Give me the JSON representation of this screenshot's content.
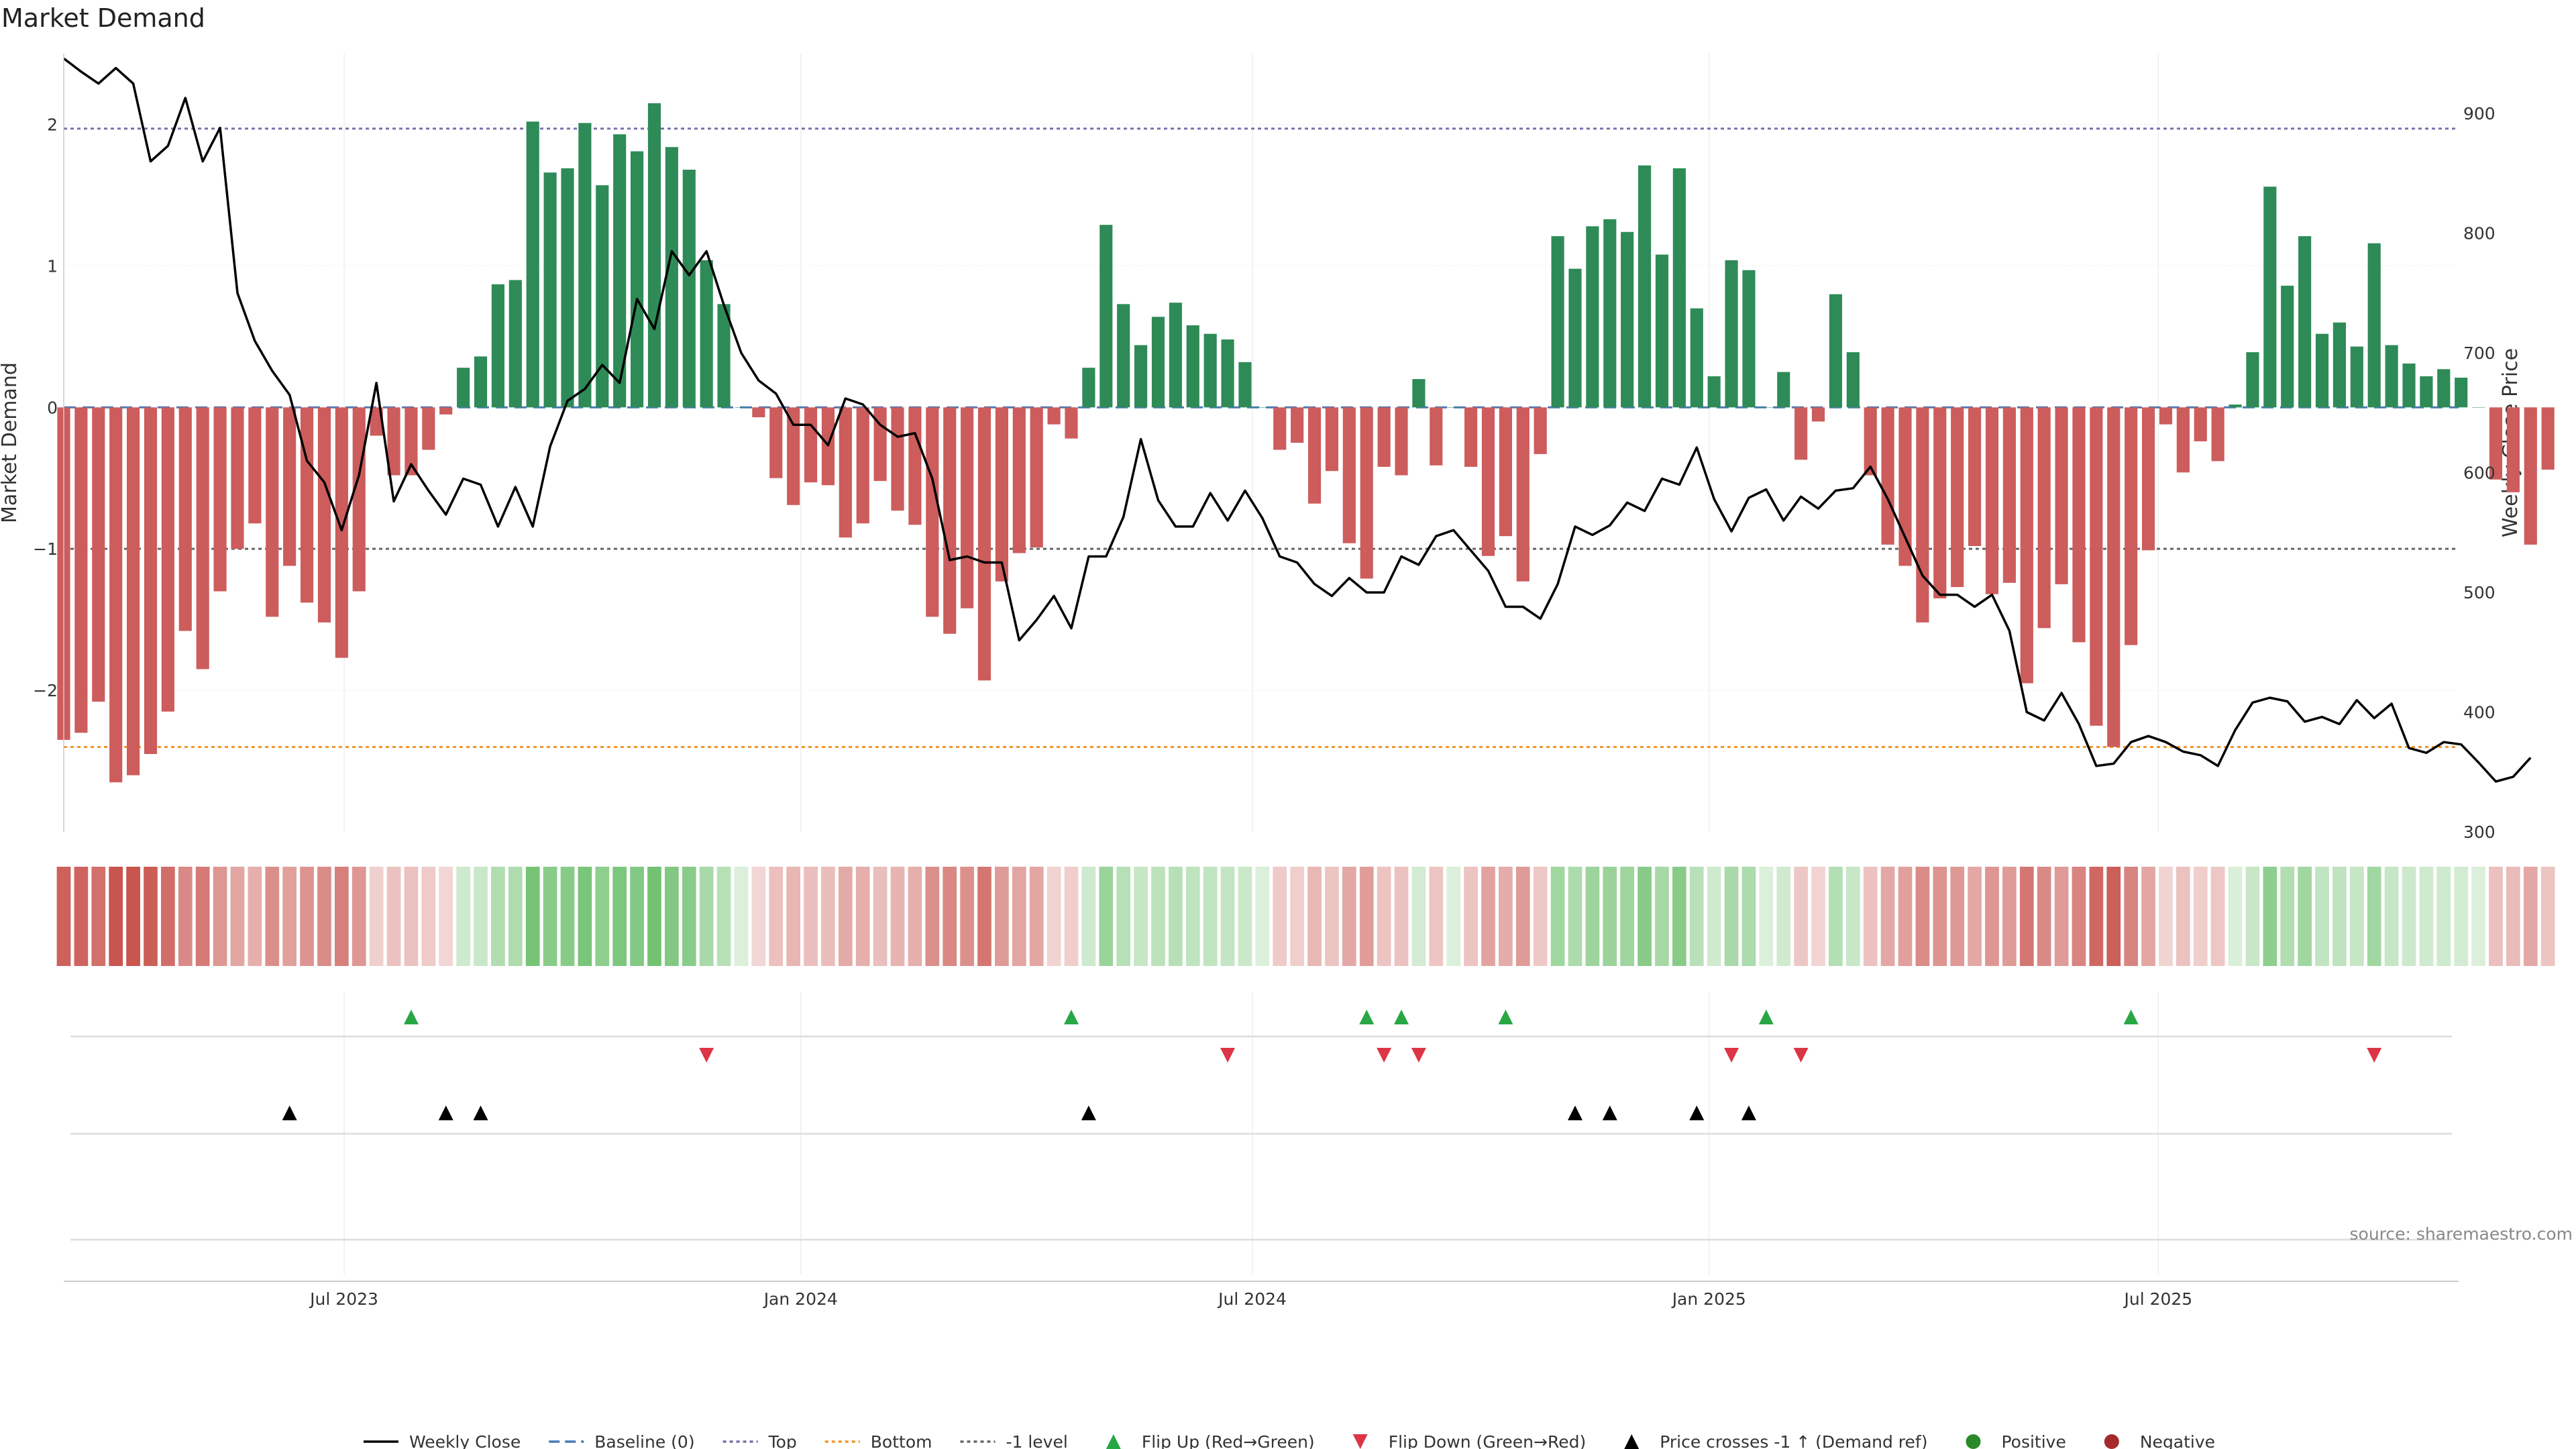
{
  "chart_data": {
    "type": "bar",
    "title": "Market Demand",
    "ylabel_left": "Market Demand",
    "ylabel_right": "Weekly Close Price",
    "ylim_left": [
      -3.0,
      2.5
    ],
    "ylim_right": [
      300,
      950
    ],
    "yticks_left": [
      -2,
      -1,
      0,
      1,
      2
    ],
    "yticks_left_labels": [
      "−2",
      "−1",
      "0",
      "1",
      "2"
    ],
    "yticks_right": [
      300,
      400,
      500,
      600,
      700,
      800,
      900
    ],
    "yticks_right_labels": [
      "300",
      "400",
      "500",
      "600",
      "700",
      "800",
      "900"
    ],
    "x_start": "2023-03-10",
    "x_end": "2025-10-30",
    "xticks": [
      {
        "date": "2023-07-01",
        "label": "Jul 2023"
      },
      {
        "date": "2024-01-01",
        "label": "Jan 2024"
      },
      {
        "date": "2024-07-01",
        "label": "Jul 2024"
      },
      {
        "date": "2025-01-01",
        "label": "Jan 2025"
      },
      {
        "date": "2025-07-01",
        "label": "Jul 2025"
      }
    ],
    "levels": {
      "top": 1.97,
      "bottom": -2.4,
      "minus_one": -1.0,
      "baseline": 0
    },
    "first_week": "2023-03-10",
    "demand": [
      -2.35,
      -2.3,
      -2.08,
      -2.65,
      -2.6,
      -2.45,
      -2.15,
      -1.58,
      -1.85,
      -1.3,
      -1.0,
      -0.82,
      -1.48,
      -1.12,
      -1.38,
      -1.52,
      -1.77,
      -1.3,
      -0.2,
      -0.48,
      -0.48,
      -0.3,
      -0.05,
      0.28,
      0.36,
      0.87,
      0.9,
      2.02,
      1.66,
      1.69,
      2.01,
      1.57,
      1.93,
      1.81,
      2.15,
      1.84,
      1.68,
      1.04,
      0.73,
      0.0,
      -0.07,
      -0.5,
      -0.69,
      -0.53,
      -0.55,
      -0.92,
      -0.82,
      -0.52,
      -0.73,
      -0.83,
      -1.48,
      -1.6,
      -1.42,
      -1.93,
      -1.23,
      -1.03,
      -0.99,
      -0.12,
      -0.22,
      0.28,
      1.29,
      0.73,
      0.44,
      0.64,
      0.74,
      0.58,
      0.52,
      0.48,
      0.32,
      0.0,
      -0.3,
      -0.25,
      -0.68,
      -0.45,
      -0.96,
      -1.21,
      -0.42,
      -0.48,
      0.2,
      -0.41,
      0.0,
      -0.42,
      -1.05,
      -0.91,
      -1.23,
      -0.33,
      1.21,
      0.98,
      1.28,
      1.33,
      1.24,
      1.71,
      1.08,
      1.69,
      0.7,
      0.22,
      1.04,
      0.97,
      0.0,
      0.25,
      -0.37,
      -0.1,
      0.8,
      0.39,
      -0.48,
      -0.97,
      -1.12,
      -1.52,
      -1.35,
      -1.27,
      -0.98,
      -1.32,
      -1.24,
      -1.95,
      -1.56,
      -1.25,
      -1.66,
      -2.25,
      -2.4,
      -1.68,
      -1.01,
      -0.12,
      -0.46,
      -0.24,
      -0.38,
      0.02,
      0.39,
      1.56,
      0.86,
      1.21,
      0.52,
      0.6,
      0.43,
      1.16,
      0.44,
      0.31,
      0.22,
      0.27,
      0.21,
      0.0,
      -0.51,
      -0.6,
      -0.97,
      -0.44
    ],
    "close": [
      946,
      935,
      925,
      938,
      925,
      860,
      873,
      913,
      860,
      888,
      750,
      710,
      685,
      665,
      610,
      592,
      552,
      598,
      675,
      576,
      607,
      585,
      565,
      595,
      590,
      555,
      588,
      555,
      622,
      660,
      670,
      690,
      675,
      745,
      720,
      785,
      765,
      785,
      740,
      700,
      677,
      666,
      640,
      640,
      623,
      662,
      657,
      640,
      630,
      633,
      595,
      527,
      530,
      525,
      525,
      460,
      477,
      497,
      470,
      530,
      530,
      563,
      628,
      577,
      555,
      555,
      583,
      560,
      585,
      562,
      530,
      525,
      507,
      497,
      512,
      500,
      500,
      530,
      523,
      547,
      552,
      535,
      518,
      488,
      488,
      478,
      507,
      555,
      548,
      556,
      575,
      568,
      595,
      590,
      621,
      578,
      551,
      579,
      586,
      560,
      580,
      570,
      585,
      587,
      605,
      578,
      546,
      514,
      498,
      498,
      488,
      498,
      468,
      400,
      393,
      416,
      390,
      355,
      357,
      375,
      380,
      375,
      367,
      364,
      355,
      385,
      408,
      412,
      409,
      392,
      396,
      390,
      410,
      395,
      407,
      370,
      366,
      375,
      373,
      358,
      342,
      346,
      362
    ],
    "flip_up": [
      "2023-07-28",
      "2024-04-19",
      "2024-08-16",
      "2024-08-30",
      "2024-10-11",
      "2025-01-24",
      "2025-06-20"
    ],
    "flip_down": [
      "2023-11-24",
      "2024-06-21",
      "2024-08-23",
      "2024-09-06",
      "2025-01-10",
      "2025-02-07",
      "2025-09-26"
    ],
    "price_cross": [
      "2023-06-09",
      "2023-08-11",
      "2023-08-25",
      "2024-04-26",
      "2024-11-08",
      "2024-11-22",
      "2024-12-27",
      "2025-01-17"
    ],
    "legend": [
      {
        "label": "Weekly Close",
        "kind": "line-solid",
        "color": "#000000"
      },
      {
        "label": "Baseline (0)",
        "kind": "line-dashed",
        "color": "#4a7ab5"
      },
      {
        "label": "Top",
        "kind": "line-dotted",
        "color": "#7b6fae"
      },
      {
        "label": "Bottom",
        "kind": "line-dotted",
        "color": "#f0962e"
      },
      {
        "label": "-1 level",
        "kind": "line-dotted",
        "color": "#666666"
      },
      {
        "label": "Flip Up (Red→Green)",
        "kind": "tri-up",
        "color": "#28a745"
      },
      {
        "label": "Flip Down (Green→Red)",
        "kind": "tri-down",
        "color": "#dc3545"
      },
      {
        "label": "Price crosses -1 ↑ (Demand ref)",
        "kind": "tri-up",
        "color": "#000000"
      },
      {
        "label": "Positive",
        "kind": "dot",
        "color": "#2a8a2a"
      },
      {
        "label": "Negative",
        "kind": "dot",
        "color": "#a52a2a"
      }
    ],
    "source": "source: sharemaestro.com"
  },
  "colors": {
    "positive_bar": "#2e8b57",
    "negative_bar": "#cd5c5c",
    "heat_pos": "#5cb85c",
    "heat_neg": "#c9554f"
  }
}
